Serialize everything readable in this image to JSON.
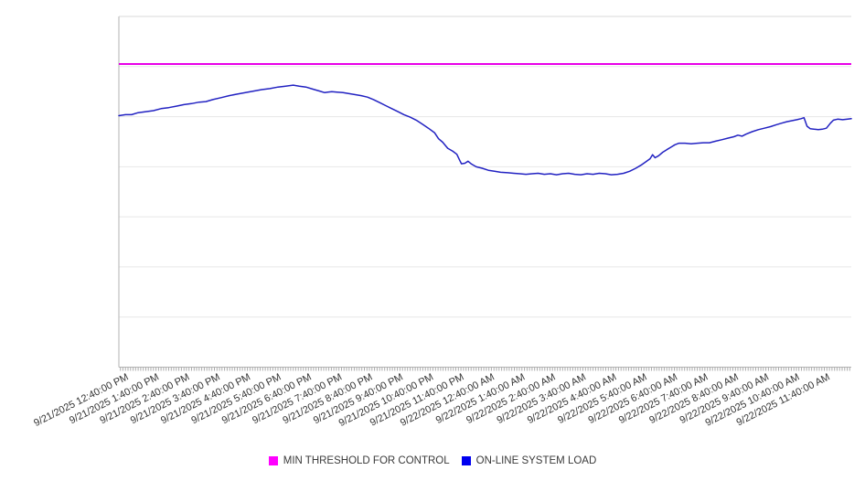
{
  "chart_data": {
    "type": "line",
    "title": "",
    "x_axis": {
      "tick_labels": [
        "9/21/2025 12:40:00 PM",
        "9/21/2025 1:40:00 PM",
        "9/21/2025 2:40:00 PM",
        "9/21/2025 3:40:00 PM",
        "9/21/2025 4:40:00 PM",
        "9/21/2025 5:40:00 PM",
        "9/21/2025 6:40:00 PM",
        "9/21/2025 7:40:00 PM",
        "9/21/2025 8:40:00 PM",
        "9/21/2025 9:40:00 PM",
        "9/21/2025 10:40:00 PM",
        "9/21/2025 11:40:00 PM",
        "9/22/2025 12:40:00 AM",
        "9/22/2025 1:40:00 AM",
        "9/22/2025 2:40:00 AM",
        "9/22/2025 3:40:00 AM",
        "9/22/2025 4:40:00 AM",
        "9/22/2025 5:40:00 AM",
        "9/22/2025 6:40:00 AM",
        "9/22/2025 7:40:00 AM",
        "9/22/2025 8:40:00 AM",
        "9/22/2025 9:40:00 AM",
        "9/22/2025 10:40:00 AM",
        "9/22/2025 11:40:00 AM"
      ],
      "label_interval_min": 60,
      "minor_tick_min": 5,
      "range_min": [
        -13,
        1428
      ],
      "label_rotation_deg": -27
    },
    "y_axis": {
      "min": 0,
      "max": 70,
      "grid_interval": 10,
      "labels_visible": false
    },
    "series": [
      {
        "name": "MIN THRESHOLD FOR CONTROL",
        "type": "threshold",
        "color": "#e800e8",
        "value": 60.5
      },
      {
        "name": "ON-LINE SYSTEM LOAD",
        "type": "line",
        "color": "#2222c2",
        "points": [
          [
            -13,
            50.2
          ],
          [
            0,
            50.4
          ],
          [
            12,
            50.4
          ],
          [
            25,
            50.8
          ],
          [
            40,
            51.0
          ],
          [
            55,
            51.2
          ],
          [
            70,
            51.6
          ],
          [
            85,
            51.8
          ],
          [
            100,
            52.1
          ],
          [
            115,
            52.4
          ],
          [
            130,
            52.6
          ],
          [
            145,
            52.9
          ],
          [
            158,
            53.0
          ],
          [
            172,
            53.4
          ],
          [
            188,
            53.8
          ],
          [
            204,
            54.2
          ],
          [
            220,
            54.5
          ],
          [
            236,
            54.8
          ],
          [
            252,
            55.1
          ],
          [
            268,
            55.4
          ],
          [
            284,
            55.6
          ],
          [
            300,
            55.9
          ],
          [
            315,
            56.1
          ],
          [
            330,
            56.3
          ],
          [
            342,
            56.1
          ],
          [
            355,
            55.9
          ],
          [
            368,
            55.5
          ],
          [
            382,
            55.1
          ],
          [
            392,
            54.8
          ],
          [
            398,
            54.9
          ],
          [
            406,
            55.0
          ],
          [
            416,
            54.9
          ],
          [
            428,
            54.8
          ],
          [
            440,
            54.6
          ],
          [
            452,
            54.4
          ],
          [
            464,
            54.2
          ],
          [
            476,
            53.9
          ],
          [
            488,
            53.4
          ],
          [
            500,
            52.8
          ],
          [
            512,
            52.2
          ],
          [
            524,
            51.6
          ],
          [
            536,
            51.0
          ],
          [
            548,
            50.4
          ],
          [
            560,
            49.9
          ],
          [
            572,
            49.3
          ],
          [
            584,
            48.5
          ],
          [
            596,
            47.7
          ],
          [
            608,
            46.8
          ],
          [
            616,
            45.6
          ],
          [
            624,
            44.9
          ],
          [
            634,
            43.7
          ],
          [
            644,
            43.1
          ],
          [
            652,
            42.5
          ],
          [
            658,
            41.2
          ],
          [
            661,
            40.6
          ],
          [
            668,
            40.7
          ],
          [
            674,
            41.1
          ],
          [
            680,
            40.6
          ],
          [
            690,
            40.0
          ],
          [
            702,
            39.7
          ],
          [
            714,
            39.3
          ],
          [
            726,
            39.1
          ],
          [
            738,
            38.9
          ],
          [
            752,
            38.8
          ],
          [
            764,
            38.7
          ],
          [
            776,
            38.6
          ],
          [
            788,
            38.5
          ],
          [
            800,
            38.6
          ],
          [
            812,
            38.7
          ],
          [
            824,
            38.5
          ],
          [
            836,
            38.6
          ],
          [
            848,
            38.4
          ],
          [
            860,
            38.6
          ],
          [
            872,
            38.7
          ],
          [
            884,
            38.5
          ],
          [
            896,
            38.4
          ],
          [
            908,
            38.6
          ],
          [
            920,
            38.5
          ],
          [
            932,
            38.7
          ],
          [
            944,
            38.6
          ],
          [
            956,
            38.4
          ],
          [
            968,
            38.5
          ],
          [
            980,
            38.7
          ],
          [
            992,
            39.1
          ],
          [
            1004,
            39.7
          ],
          [
            1014,
            40.3
          ],
          [
            1024,
            41.0
          ],
          [
            1032,
            41.6
          ],
          [
            1037,
            42.4
          ],
          [
            1042,
            41.8
          ],
          [
            1049,
            42.2
          ],
          [
            1057,
            42.9
          ],
          [
            1065,
            43.4
          ],
          [
            1073,
            43.9
          ],
          [
            1081,
            44.4
          ],
          [
            1089,
            44.7
          ],
          [
            1101,
            44.7
          ],
          [
            1113,
            44.6
          ],
          [
            1125,
            44.7
          ],
          [
            1137,
            44.8
          ],
          [
            1149,
            44.8
          ],
          [
            1161,
            45.1
          ],
          [
            1173,
            45.4
          ],
          [
            1185,
            45.7
          ],
          [
            1197,
            46.0
          ],
          [
            1205,
            46.3
          ],
          [
            1213,
            46.1
          ],
          [
            1221,
            46.5
          ],
          [
            1233,
            47.0
          ],
          [
            1245,
            47.4
          ],
          [
            1257,
            47.7
          ],
          [
            1269,
            48.0
          ],
          [
            1281,
            48.4
          ],
          [
            1291,
            48.7
          ],
          [
            1301,
            49.0
          ],
          [
            1311,
            49.2
          ],
          [
            1321,
            49.4
          ],
          [
            1329,
            49.6
          ],
          [
            1335,
            49.8
          ],
          [
            1341,
            48.1
          ],
          [
            1347,
            47.6
          ],
          [
            1355,
            47.5
          ],
          [
            1363,
            47.4
          ],
          [
            1371,
            47.5
          ],
          [
            1379,
            47.7
          ],
          [
            1387,
            48.7
          ],
          [
            1393,
            49.3
          ],
          [
            1401,
            49.5
          ],
          [
            1411,
            49.4
          ],
          [
            1421,
            49.5
          ],
          [
            1428,
            49.6
          ]
        ]
      }
    ],
    "legend": {
      "position": "bottom-center",
      "entries": [
        {
          "label": "MIN THRESHOLD FOR CONTROL",
          "color": "#ff00ff"
        },
        {
          "label": "ON-LINE SYSTEM LOAD",
          "color": "#0000f0"
        }
      ]
    },
    "colors": {
      "plot_background": "#ffffff",
      "gridline": "#e7e7e7",
      "top_border": "#d9d9d9",
      "axis": "#b3b3b3",
      "minor_tick": "#ababab",
      "label_text": "#333333"
    },
    "layout_hints": {
      "grid": "horizontal-only",
      "legend_position": "bottom"
    }
  }
}
